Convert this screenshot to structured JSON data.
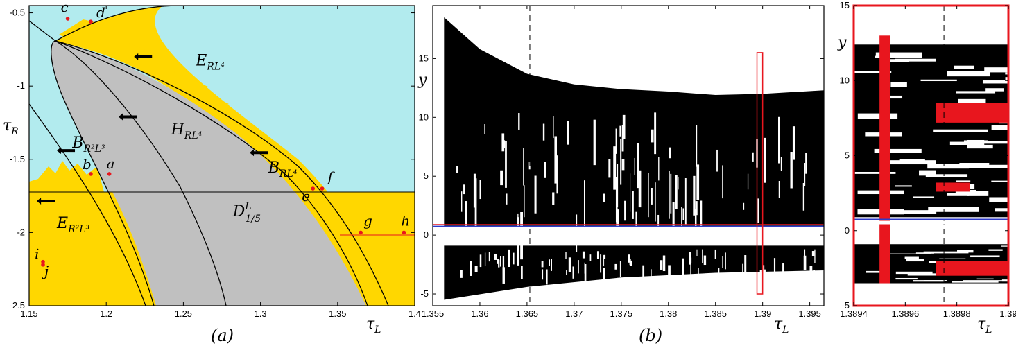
{
  "colors": {
    "cyan": "#b2ebee",
    "gold": "#ffd700",
    "gray": "#c0c0c0",
    "red": "#e8161e",
    "blue": "#2d39c8",
    "black": "#000000"
  },
  "chart_data": [
    {
      "type": "region-diagram",
      "caption": "(a)",
      "xlabel": "τ",
      "xlabel_sub": "L",
      "ylabel": "τ",
      "ylabel_sub": "R",
      "xlim": [
        1.15,
        1.4
      ],
      "ylim": [
        -2.5,
        -0.45
      ],
      "xticks": [
        "1.15",
        "1.2",
        "1.25",
        "1.3",
        "1.35",
        "1.4"
      ],
      "yticks": [
        "-0.5",
        "-1",
        "-1.5",
        "-2",
        "-2.5"
      ],
      "xtick_values": [
        1.15,
        1.2,
        1.25,
        1.3,
        1.35,
        1.4
      ],
      "ytick_values": [
        -0.5,
        -1,
        -1.5,
        -2,
        -2.5
      ],
      "threshold_line_y": -1.7,
      "curve_labels": [
        {
          "text": "E",
          "sub": "RL⁴",
          "x": 1.258,
          "y": -0.86
        },
        {
          "text": "H",
          "sub": "RL⁴",
          "x": 1.242,
          "y": -1.33
        },
        {
          "text": "B",
          "sub": "R²L³",
          "x": 1.178,
          "y": -1.42
        },
        {
          "text": "B",
          "sub": "RL⁴",
          "x": 1.305,
          "y": -1.59
        },
        {
          "text": "E",
          "sub": "R²L³",
          "x": 1.168,
          "y": -1.97
        },
        {
          "text": "D",
          "sub": "1/5",
          "sup": "L",
          "x": 1.282,
          "y": -1.89
        }
      ],
      "arrows": [
        {
          "x": 1.218,
          "y": -0.8
        },
        {
          "x": 1.208,
          "y": -1.21
        },
        {
          "x": 1.168,
          "y": -1.44
        },
        {
          "x": 1.293,
          "y": -1.455
        },
        {
          "x": 1.155,
          "y": -1.785
        }
      ],
      "points": [
        {
          "label": "a",
          "x": 1.202,
          "y": -1.6
        },
        {
          "label": "b",
          "x": 1.19,
          "y": -1.6
        },
        {
          "label": "c",
          "x": 1.175,
          "y": -0.54
        },
        {
          "label": "d",
          "x": 1.19,
          "y": -0.56
        },
        {
          "label": "e",
          "x": 1.334,
          "y": -1.7
        },
        {
          "label": "f",
          "x": 1.34,
          "y": -1.7
        },
        {
          "label": "g",
          "x": 1.365,
          "y": -2.0
        },
        {
          "label": "h",
          "x": 1.393,
          "y": -2.0
        },
        {
          "label": "i",
          "x": 1.159,
          "y": -2.2
        },
        {
          "label": "j",
          "x": 1.159,
          "y": -2.22
        }
      ]
    },
    {
      "type": "bifurcation",
      "caption": "(b)",
      "xlabel": "τ",
      "xlabel_sub": "L",
      "ylabel": "y",
      "xlim": [
        1.355,
        1.3965
      ],
      "ylim": [
        -6,
        19.5
      ],
      "xticks": [
        "1.355",
        "1.36",
        "1.365",
        "1.37",
        "1.375",
        "1.38",
        "1.385",
        "1.39",
        "1.395"
      ],
      "xtick_values": [
        1.355,
        1.36,
        1.365,
        1.37,
        1.375,
        1.38,
        1.385,
        1.39,
        1.395
      ],
      "yticks": [
        "-5",
        "0",
        "5",
        "10",
        "15"
      ],
      "ytick_values": [
        -5,
        0,
        5,
        10,
        15
      ],
      "dashed_x": 1.3653,
      "blue_line_y": 0.75,
      "red_line_y": 0.9,
      "zoom_box": {
        "x0": 1.3894,
        "x1": 1.39,
        "y0": -5,
        "y1": 15.5
      },
      "attractor_start": 1.3562,
      "attractor_upper": [
        {
          "x": 1.3562,
          "top": 18.5,
          "inner": 0.8
        },
        {
          "x": 1.36,
          "top": 15.8,
          "inner": 0.8
        },
        {
          "x": 1.365,
          "top": 13.7,
          "inner": 0.8
        },
        {
          "x": 1.37,
          "top": 12.8,
          "inner": 0.8
        },
        {
          "x": 1.375,
          "top": 12.4,
          "inner": 0.8
        },
        {
          "x": 1.38,
          "top": 12.2,
          "inner": 0.8
        },
        {
          "x": 1.385,
          "top": 11.9,
          "inner": 0.8
        },
        {
          "x": 1.39,
          "top": 12.0,
          "inner": 0.8
        },
        {
          "x": 1.3965,
          "top": 12.3,
          "inner": 0.8
        }
      ],
      "attractor_lower": [
        {
          "x": 1.3562,
          "bottom": -5.5,
          "inner": -0.9
        },
        {
          "x": 1.365,
          "bottom": -4.4,
          "inner": -0.9
        },
        {
          "x": 1.375,
          "bottom": -3.6,
          "inner": -0.9
        },
        {
          "x": 1.385,
          "bottom": -3.2,
          "inner": -0.9
        },
        {
          "x": 1.3965,
          "bottom": -3.0,
          "inner": -0.9
        }
      ]
    },
    {
      "type": "bifurcation-zoom",
      "xlabel": "τ",
      "xlabel_sub": "L",
      "ylabel": "y",
      "xlim": [
        1.3894,
        1.39
      ],
      "ylim": [
        -5,
        15
      ],
      "xticks": [
        "1.3894",
        "1.3896",
        "1.3898",
        "1.39"
      ],
      "xtick_values": [
        1.3894,
        1.3896,
        1.3898,
        1.39
      ],
      "yticks": [
        "-5",
        "0",
        "5",
        "10",
        "15"
      ],
      "ytick_values": [
        -5,
        0,
        5,
        10,
        15
      ],
      "dashed_x": 1.38975,
      "blue_line_y": 0.75,
      "red_bands": [
        {
          "x0": 1.3895,
          "x1": 1.38954,
          "y0": -3.5,
          "y1": 13.0
        },
        {
          "x0": 1.38972,
          "x1": 1.39,
          "y0": 7.2,
          "y1": 8.5
        },
        {
          "x0": 1.38972,
          "x1": 1.39,
          "y0": -3.0,
          "y1": -2.0
        },
        {
          "x0": 1.38972,
          "x1": 1.38985,
          "y0": 2.6,
          "y1": 3.2
        }
      ]
    }
  ]
}
